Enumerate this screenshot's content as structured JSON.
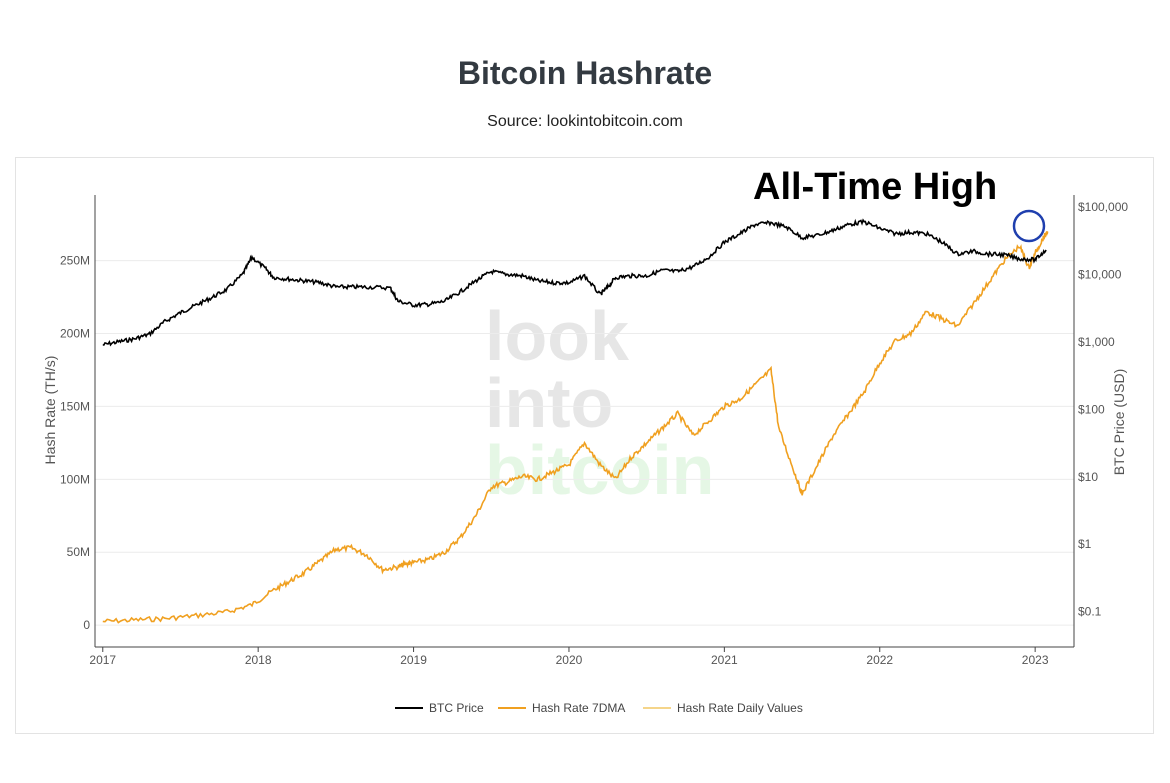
{
  "chart_data": {
    "type": "line",
    "title": "Bitcoin Hashrate",
    "subtitle": "Source: lookintobitcoin.com",
    "annotation": "All-Time High",
    "watermark": [
      "look",
      "into",
      "bitcoin"
    ],
    "colors": {
      "btc_price": "#000000",
      "hash_rate_7dma": "#f0a020",
      "hash_rate_daily": "#f5d58a",
      "annotation_circle": "#1f3fae",
      "watermark_gray": "#e6e6e6",
      "watermark_green": "#e5f7e5"
    },
    "x_axis": {
      "ticks": [
        "2017",
        "2018",
        "2019",
        "2020",
        "2021",
        "2022",
        "2023"
      ],
      "range": [
        2016.95,
        2023.25
      ]
    },
    "y_left": {
      "label": "Hash Rate (TH/s)",
      "range": [
        -15000000,
        295000000
      ],
      "ticks": [
        {
          "value": 0,
          "label": "0"
        },
        {
          "value": 50000000,
          "label": "50M"
        },
        {
          "value": 100000000,
          "label": "100M"
        },
        {
          "value": 150000000,
          "label": "150M"
        },
        {
          "value": 200000000,
          "label": "200M"
        },
        {
          "value": 250000000,
          "label": "250M"
        }
      ]
    },
    "y_right": {
      "label": "BTC Price (USD)",
      "scale": "log",
      "range": [
        0.03,
        150000
      ],
      "ticks": [
        {
          "value": 0.1,
          "label": "$0.1"
        },
        {
          "value": 1,
          "label": "$1"
        },
        {
          "value": 10,
          "label": "$10"
        },
        {
          "value": 100,
          "label": "$100"
        },
        {
          "value": 1000,
          "label": "$1,000"
        },
        {
          "value": 10000,
          "label": "$10,000"
        },
        {
          "value": 100000,
          "label": "$100,000"
        }
      ]
    },
    "grid": true,
    "legend_position": "bottom-center",
    "series": [
      {
        "name": "BTC Price",
        "axis": "right",
        "x": [
          2017.0,
          2017.1,
          2017.2,
          2017.3,
          2017.4,
          2017.5,
          2017.6,
          2017.7,
          2017.8,
          2017.9,
          2017.96,
          2018.05,
          2018.1,
          2018.2,
          2018.3,
          2018.4,
          2018.5,
          2018.6,
          2018.7,
          2018.85,
          2018.9,
          2019.0,
          2019.1,
          2019.2,
          2019.3,
          2019.4,
          2019.5,
          2019.6,
          2019.7,
          2019.8,
          2019.9,
          2020.0,
          2020.1,
          2020.2,
          2020.25,
          2020.3,
          2020.4,
          2020.5,
          2020.6,
          2020.7,
          2020.8,
          2020.9,
          2021.0,
          2021.1,
          2021.2,
          2021.3,
          2021.4,
          2021.5,
          2021.6,
          2021.7,
          2021.8,
          2021.9,
          2022.0,
          2022.1,
          2022.2,
          2022.3,
          2022.4,
          2022.5,
          2022.6,
          2022.7,
          2022.8,
          2022.9,
          2023.0,
          2023.07
        ],
        "y": [
          900,
          1000,
          1100,
          1300,
          2000,
          2700,
          3500,
          4500,
          6000,
          10000,
          18000,
          12000,
          9000,
          8500,
          8000,
          7500,
          6500,
          6500,
          6500,
          6300,
          4000,
          3500,
          3600,
          4000,
          5500,
          8000,
          11000,
          10000,
          9500,
          8000,
          7500,
          7500,
          9500,
          5000,
          6500,
          9000,
          9500,
          9500,
          11500,
          11000,
          13000,
          18000,
          30000,
          40000,
          55000,
          58000,
          50000,
          35000,
          38000,
          45000,
          55000,
          60000,
          48000,
          40000,
          42000,
          40000,
          30000,
          20000,
          22000,
          20000,
          19500,
          17000,
          16500,
          23000
        ]
      },
      {
        "name": "Hash Rate 7DMA",
        "axis": "left",
        "x": [
          2017.0,
          2017.2,
          2017.4,
          2017.6,
          2017.8,
          2017.96,
          2018.1,
          2018.2,
          2018.3,
          2018.4,
          2018.5,
          2018.6,
          2018.7,
          2018.8,
          2018.9,
          2018.95,
          2019.0,
          2019.1,
          2019.2,
          2019.3,
          2019.4,
          2019.5,
          2019.6,
          2019.7,
          2019.8,
          2019.9,
          2020.0,
          2020.1,
          2020.2,
          2020.3,
          2020.4,
          2020.5,
          2020.6,
          2020.7,
          2020.8,
          2020.9,
          2021.0,
          2021.1,
          2021.2,
          2021.3,
          2021.35,
          2021.45,
          2021.5,
          2021.6,
          2021.7,
          2021.8,
          2021.9,
          2022.0,
          2022.1,
          2022.2,
          2022.3,
          2022.4,
          2022.5,
          2022.6,
          2022.7,
          2022.8,
          2022.9,
          2022.96,
          2023.0,
          2023.05,
          2023.08
        ],
        "y": [
          2500000,
          3500000,
          4500000,
          6500000,
          9000000,
          14000000,
          24000000,
          30000000,
          36000000,
          44000000,
          52000000,
          53000000,
          48000000,
          38000000,
          40000000,
          42000000,
          43000000,
          45000000,
          50000000,
          60000000,
          75000000,
          95000000,
          98000000,
          102000000,
          100000000,
          105000000,
          110000000,
          125000000,
          110000000,
          100000000,
          115000000,
          125000000,
          135000000,
          145000000,
          130000000,
          140000000,
          150000000,
          155000000,
          165000000,
          175000000,
          135000000,
          105000000,
          90000000,
          110000000,
          130000000,
          145000000,
          160000000,
          180000000,
          195000000,
          200000000,
          215000000,
          210000000,
          205000000,
          220000000,
          235000000,
          250000000,
          260000000,
          245000000,
          255000000,
          265000000,
          270000000
        ]
      },
      {
        "name": "Hash Rate Daily Values",
        "axis": "left"
      }
    ]
  }
}
